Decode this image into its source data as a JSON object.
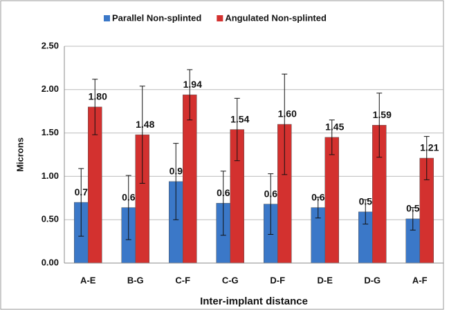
{
  "chart_data": {
    "type": "bar",
    "categories": [
      "A-E",
      "B-G",
      "C-F",
      "C-G",
      "D-F",
      "D-E",
      "D-G",
      "A-F"
    ],
    "series": [
      {
        "name": "Parallel Non-splinted",
        "color": "#3b78c8",
        "values": [
          0.7,
          0.64,
          0.94,
          0.69,
          0.68,
          0.64,
          0.59,
          0.51
        ],
        "value_labels": [
          "0.70",
          "0.64",
          "0.94",
          "0.69",
          "0.68",
          "0.64",
          "0.59",
          "0.51"
        ],
        "errors": [
          0.39,
          0.37,
          0.44,
          0.37,
          0.35,
          0.12,
          0.14,
          0.13
        ]
      },
      {
        "name": "Angulated Non-splinted",
        "color": "#d3312f",
        "values": [
          1.8,
          1.48,
          1.94,
          1.54,
          1.6,
          1.45,
          1.59,
          1.21
        ],
        "value_labels": [
          "1.80",
          "1.48",
          "1.94",
          "1.54",
          "1.60",
          "1.45",
          "1.59",
          "1.21"
        ],
        "errors": [
          0.32,
          0.56,
          0.29,
          0.36,
          0.58,
          0.2,
          0.37,
          0.25
        ]
      }
    ],
    "ylabel": "Microns",
    "xlabel": "Inter-implant distance",
    "ylim": [
      0,
      2.5
    ],
    "yticks": [
      {
        "value": 0,
        "label": "0.00"
      },
      {
        "value": 0.5,
        "label": "0.50"
      },
      {
        "value": 1,
        "label": "1.00"
      },
      {
        "value": 1.5,
        "label": "1.50"
      },
      {
        "value": 2,
        "label": "2.00"
      },
      {
        "value": 2.5,
        "label": "2.50"
      }
    ],
    "grid": true,
    "legend": "top"
  }
}
